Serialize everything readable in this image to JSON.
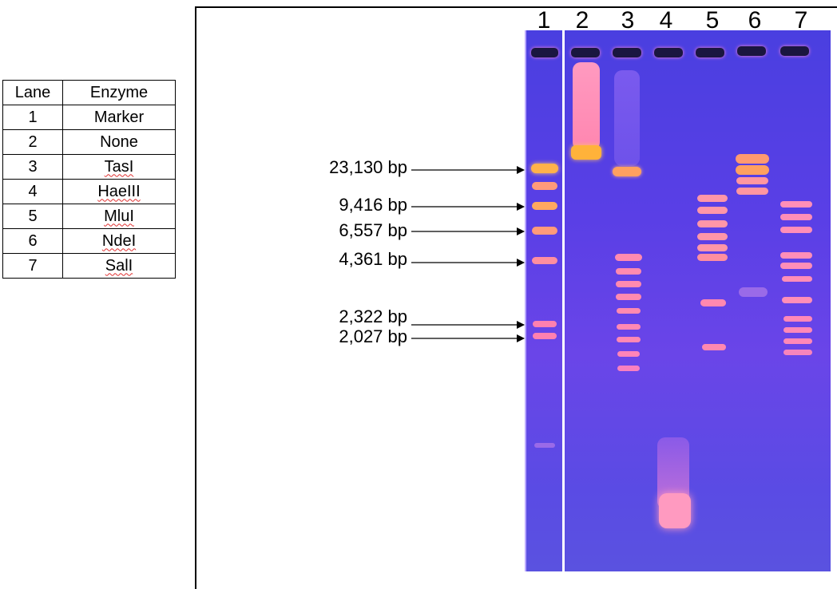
{
  "table": {
    "header_lane": "Lane",
    "header_enzyme": "Enzyme",
    "rows": [
      {
        "lane": "1",
        "enzyme": "Marker"
      },
      {
        "lane": "2",
        "enzyme": "None"
      },
      {
        "lane": "3",
        "enzyme": "TasI"
      },
      {
        "lane": "4",
        "enzyme": "HaeIII"
      },
      {
        "lane": "5",
        "enzyme": "MluI"
      },
      {
        "lane": "6",
        "enzyme": "NdeI"
      },
      {
        "lane": "7",
        "enzyme": "SalI"
      }
    ]
  },
  "lane_numbers": [
    "1",
    "2",
    "3",
    "4",
    "5",
    "6",
    "7"
  ],
  "size_labels": [
    "23,130 bp",
    "9,416 bp",
    "6,557 bp",
    "4,361 bp",
    "2,322 bp",
    "2,027 bp"
  ],
  "colors": {
    "gel_blue": "#4a3fe0",
    "band_orange": "#ffb24a",
    "band_pink": "#ff7ab0",
    "spellcheck_red": "#e03030"
  }
}
